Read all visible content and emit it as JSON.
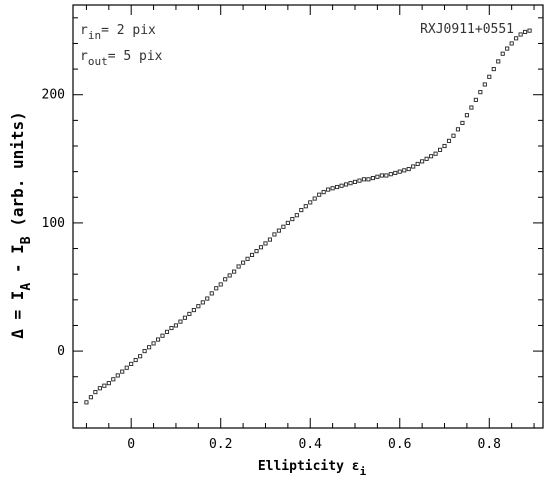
{
  "chart_data": {
    "type": "scatter",
    "title": "",
    "xlabel": {
      "main": "Ellipticity ε",
      "sub": "i"
    },
    "ylabel": {
      "p1": "Δ = I",
      "s1": "A",
      "p2": " - I",
      "s2": "B",
      "p3": " (arb. units)"
    },
    "xlim": [
      -0.13,
      0.92
    ],
    "ylim": [
      -60,
      270
    ],
    "x_major_ticks": [
      0,
      0.2,
      0.4,
      0.6,
      0.8
    ],
    "x_tick_labels": [
      "0",
      "0.2",
      "0.4",
      "0.6",
      "0.8"
    ],
    "y_major_ticks": [
      0,
      100,
      200
    ],
    "y_tick_labels": [
      "0",
      "100",
      "200"
    ],
    "grid": false,
    "annotations": {
      "object_name": "RXJ0911+0551",
      "r_in": {
        "r": "r",
        "sub": "in",
        "rest": "= 2 pix"
      },
      "r_out": {
        "r": "r",
        "sub": "out",
        "rest": "= 5 pix"
      }
    },
    "series": [
      {
        "x": [
          -0.1,
          -0.09,
          -0.08,
          -0.07,
          -0.06,
          -0.05,
          -0.04,
          -0.03,
          -0.02,
          -0.01,
          0.0,
          0.01,
          0.02,
          0.03,
          0.04,
          0.05,
          0.06,
          0.07,
          0.08,
          0.09,
          0.1,
          0.11,
          0.12,
          0.13,
          0.14,
          0.15,
          0.16,
          0.17,
          0.18,
          0.19,
          0.2,
          0.21,
          0.22,
          0.23,
          0.24,
          0.25,
          0.26,
          0.27,
          0.28,
          0.29,
          0.3,
          0.31,
          0.32,
          0.33,
          0.34,
          0.35,
          0.36,
          0.37,
          0.38,
          0.39,
          0.4,
          0.41,
          0.42,
          0.43,
          0.44,
          0.45,
          0.46,
          0.47,
          0.48,
          0.49,
          0.5,
          0.51,
          0.52,
          0.53,
          0.54,
          0.55,
          0.56,
          0.57,
          0.58,
          0.59,
          0.6,
          0.61,
          0.62,
          0.63,
          0.64,
          0.65,
          0.66,
          0.67,
          0.68,
          0.69,
          0.7,
          0.71,
          0.72,
          0.73,
          0.74,
          0.75,
          0.76,
          0.77,
          0.78,
          0.79,
          0.8,
          0.81,
          0.82,
          0.83,
          0.84,
          0.85,
          0.86,
          0.87,
          0.88,
          0.89
        ],
        "y": [
          -40,
          -36,
          -32,
          -29,
          -27,
          -25,
          -22,
          -19,
          -16,
          -13,
          -10,
          -7,
          -4,
          0,
          3,
          6,
          9,
          12,
          15,
          18,
          20,
          23,
          26,
          29,
          32,
          35,
          38,
          41,
          45,
          49,
          52,
          56,
          59,
          62,
          66,
          69,
          72,
          75,
          78,
          81,
          84,
          87,
          91,
          94,
          97,
          100,
          103,
          106,
          110,
          113,
          116,
          119,
          122,
          124,
          126,
          127,
          128,
          129,
          130,
          131,
          132,
          133,
          134,
          134,
          135,
          136,
          137,
          137,
          138,
          139,
          140,
          141,
          142,
          144,
          146,
          148,
          150,
          152,
          154,
          157,
          160,
          164,
          168,
          173,
          178,
          184,
          190,
          196,
          202,
          208,
          214,
          220,
          226,
          232,
          236,
          240,
          244,
          247,
          249,
          250
        ]
      }
    ]
  }
}
